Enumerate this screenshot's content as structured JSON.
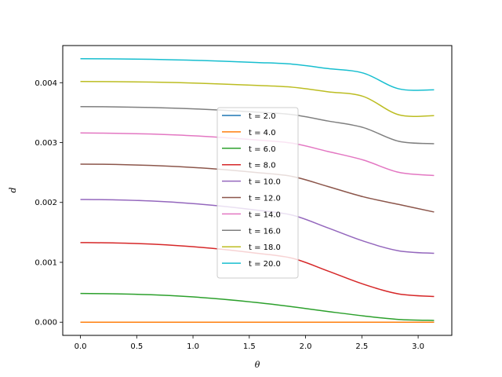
{
  "chart_data": {
    "type": "line",
    "title": "",
    "xlabel": "θ",
    "ylabel": "d",
    "xlim": [
      -0.157,
      3.299
    ],
    "ylim": [
      -0.00022,
      0.00462
    ],
    "xticks": [
      0.0,
      0.5,
      1.0,
      1.5,
      2.0,
      2.5,
      3.0
    ],
    "xtick_labels": [
      "0.0",
      "0.5",
      "1.0",
      "1.5",
      "2.0",
      "2.5",
      "3.0"
    ],
    "yticks": [
      0.0,
      0.001,
      0.002,
      0.003,
      0.004
    ],
    "ytick_labels": [
      "0.000",
      "0.001",
      "0.002",
      "0.003",
      "0.004"
    ],
    "grid": false,
    "legend": "center",
    "x": [
      0.0,
      0.3142,
      0.6283,
      0.9425,
      1.2566,
      1.5708,
      1.885,
      2.1991,
      2.5133,
      2.8274,
      3.1416
    ],
    "series": [
      {
        "name": "t = 2.0",
        "color": "#1f77b4",
        "values": [
          0.0,
          0.0,
          0.0,
          0.0,
          0.0,
          0.0,
          0.0,
          0.0,
          0.0,
          0.0,
          0.0
        ]
      },
      {
        "name": "t = 4.0",
        "color": "#ff7f0e",
        "values": [
          0.0,
          0.0,
          0.0,
          0.0,
          0.0,
          0.0,
          0.0,
          0.0,
          0.0,
          0.0,
          0.0
        ]
      },
      {
        "name": "t = 6.0",
        "color": "#2ca02c",
        "values": [
          0.00048,
          0.000474,
          0.000458,
          0.000429,
          0.000385,
          0.000327,
          0.000257,
          0.000179,
          0.000105,
          4.6e-05,
          3e-05
        ]
      },
      {
        "name": "t = 8.0",
        "color": "#d62728",
        "values": [
          0.00133,
          0.001323,
          0.001304,
          0.001269,
          0.001218,
          0.00115,
          0.001067,
          0.000855,
          0.000635,
          0.000472,
          0.00043
        ]
      },
      {
        "name": "t = 10.0",
        "color": "#9467bd",
        "values": [
          0.00205,
          0.002043,
          0.002024,
          0.001989,
          0.001938,
          0.00187,
          0.001787,
          0.001575,
          0.001355,
          0.001192,
          0.00115
        ]
      },
      {
        "name": "t = 12.0",
        "color": "#8c564b",
        "values": [
          0.00264,
          0.002634,
          0.002618,
          0.002591,
          0.002551,
          0.002498,
          0.002433,
          0.002266,
          0.002094,
          0.001967,
          0.00184
        ]
      },
      {
        "name": "t = 14.0",
        "color": "#e377c2",
        "values": [
          0.00316,
          0.003155,
          0.003142,
          0.003119,
          0.003086,
          0.003042,
          0.002988,
          0.002851,
          0.002708,
          0.002503,
          0.00245
        ]
      },
      {
        "name": "t = 16.0",
        "color": "#7f7f7f",
        "values": [
          0.0036,
          0.003596,
          0.003586,
          0.003568,
          0.003542,
          0.003508,
          0.003466,
          0.00336,
          0.00325,
          0.003021,
          0.00298
        ]
      },
      {
        "name": "t = 18.0",
        "color": "#bcbd22",
        "values": [
          0.00402,
          0.004017,
          0.00401,
          0.003997,
          0.003978,
          0.003954,
          0.003924,
          0.003848,
          0.00377,
          0.003464,
          0.00345
        ]
      },
      {
        "name": "t = 20.0",
        "color": "#17becf",
        "values": [
          0.0044,
          0.004397,
          0.00439,
          0.004377,
          0.00436,
          0.004337,
          0.004309,
          0.004236,
          0.00416,
          0.003898,
          0.00388
        ]
      }
    ]
  }
}
